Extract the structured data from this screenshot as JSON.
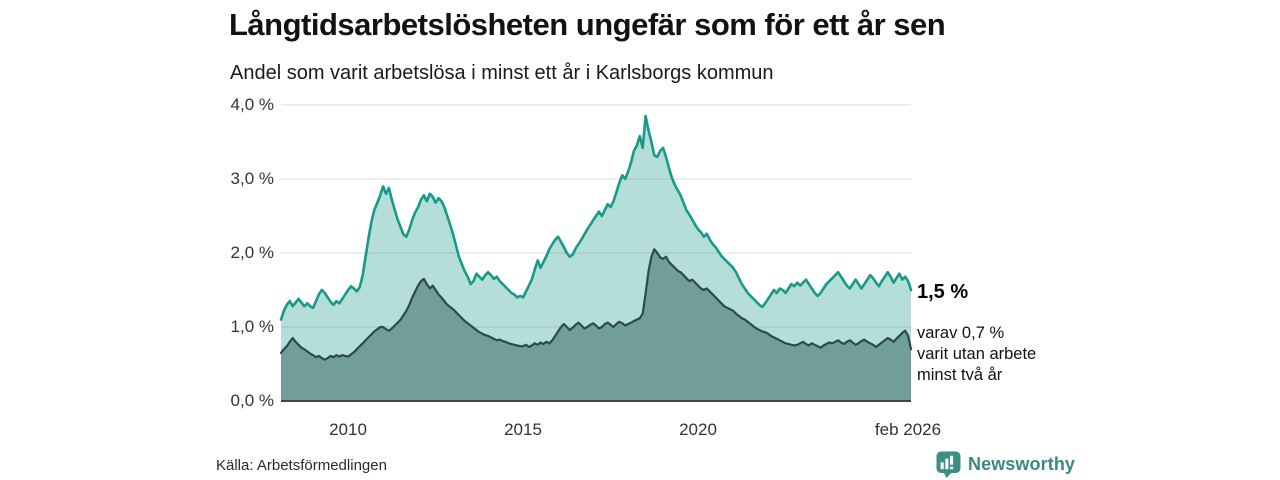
{
  "header": {
    "title": "Långtidsarbetslösheten ungefär som för ett år sen",
    "subtitle": "Andel som varit arbetslösa i minst ett år i Karlsborgs kommun"
  },
  "chart_data": {
    "type": "area",
    "title": "Långtidsarbetslösheten ungefär som för ett år sen",
    "subtitle": "Andel som varit arbetslösa i minst ett år i Karlsborgs kommun",
    "unit": "%",
    "frequency": "monthly",
    "x_start": "feb 2008",
    "x_end": "feb 2026",
    "ylim": [
      0,
      4
    ],
    "grid": "horizontal",
    "legend": "none",
    "styles": {
      "gridline_color": "#dcdcdc",
      "baseline_color": "#444444",
      "background": "#ffffff"
    },
    "yticks": {
      "values": [
        4,
        3,
        2,
        1,
        0
      ],
      "labels": [
        "4,0 %",
        "3,0 %",
        "2,0 %",
        "1,0 %",
        "0,0 %"
      ]
    },
    "xticks": [
      {
        "label": "2010"
      },
      {
        "label": "2015"
      },
      {
        "label": "2020"
      },
      {
        "label": "feb 2026"
      }
    ],
    "series": [
      {
        "name": "Andel arbetslösa minst ett år",
        "color": "#18998a",
        "fill": "#18998a",
        "fill_opacity": 0.32,
        "stroke_width": 2.6,
        "last_value": 1.5,
        "values": [
          1.1,
          1.22,
          1.3,
          1.35,
          1.28,
          1.33,
          1.38,
          1.33,
          1.28,
          1.32,
          1.28,
          1.26,
          1.35,
          1.44,
          1.5,
          1.46,
          1.4,
          1.34,
          1.3,
          1.35,
          1.32,
          1.38,
          1.44,
          1.5,
          1.55,
          1.52,
          1.48,
          1.54,
          1.7,
          1.95,
          2.2,
          2.42,
          2.58,
          2.68,
          2.78,
          2.9,
          2.8,
          2.88,
          2.72,
          2.58,
          2.45,
          2.35,
          2.25,
          2.22,
          2.32,
          2.45,
          2.55,
          2.62,
          2.72,
          2.78,
          2.7,
          2.8,
          2.76,
          2.68,
          2.74,
          2.7,
          2.62,
          2.5,
          2.38,
          2.25,
          2.1,
          1.95,
          1.85,
          1.75,
          1.68,
          1.58,
          1.62,
          1.72,
          1.68,
          1.64,
          1.7,
          1.74,
          1.7,
          1.65,
          1.68,
          1.62,
          1.58,
          1.54,
          1.5,
          1.46,
          1.44,
          1.4,
          1.42,
          1.4,
          1.48,
          1.56,
          1.64,
          1.78,
          1.9,
          1.8,
          1.88,
          1.96,
          2.05,
          2.12,
          2.18,
          2.22,
          2.15,
          2.08,
          2.0,
          1.95,
          1.98,
          2.06,
          2.12,
          2.18,
          2.25,
          2.32,
          2.38,
          2.44,
          2.5,
          2.56,
          2.5,
          2.58,
          2.66,
          2.62,
          2.7,
          2.82,
          2.95,
          3.05,
          3.0,
          3.1,
          3.22,
          3.38,
          3.45,
          3.58,
          3.42,
          3.85,
          3.66,
          3.5,
          3.32,
          3.3,
          3.38,
          3.42,
          3.3,
          3.15,
          3.02,
          2.92,
          2.85,
          2.78,
          2.68,
          2.58,
          2.52,
          2.45,
          2.38,
          2.32,
          2.28,
          2.22,
          2.26,
          2.18,
          2.12,
          2.08,
          2.02,
          1.96,
          1.92,
          1.88,
          1.84,
          1.8,
          1.74,
          1.66,
          1.58,
          1.52,
          1.46,
          1.42,
          1.38,
          1.34,
          1.3,
          1.27,
          1.32,
          1.38,
          1.44,
          1.5,
          1.46,
          1.52,
          1.5,
          1.46,
          1.52,
          1.58,
          1.55,
          1.6,
          1.56,
          1.6,
          1.64,
          1.58,
          1.52,
          1.46,
          1.42,
          1.46,
          1.52,
          1.58,
          1.62,
          1.66,
          1.7,
          1.74,
          1.68,
          1.62,
          1.56,
          1.52,
          1.58,
          1.64,
          1.58,
          1.52,
          1.58,
          1.64,
          1.7,
          1.66,
          1.6,
          1.55,
          1.62,
          1.68,
          1.74,
          1.68,
          1.6,
          1.66,
          1.72,
          1.64,
          1.68,
          1.62,
          1.5
        ]
      },
      {
        "name": "varav arbetslösa minst två år",
        "color": "#2d4b46",
        "fill": "#719e97",
        "fill_opacity": 1,
        "stroke_width": 2.2,
        "last_value": 0.7,
        "values": [
          0.65,
          0.7,
          0.74,
          0.8,
          0.85,
          0.8,
          0.76,
          0.72,
          0.7,
          0.67,
          0.64,
          0.62,
          0.59,
          0.61,
          0.58,
          0.56,
          0.58,
          0.61,
          0.59,
          0.62,
          0.6,
          0.62,
          0.61,
          0.6,
          0.63,
          0.66,
          0.7,
          0.74,
          0.78,
          0.82,
          0.86,
          0.9,
          0.94,
          0.97,
          1.0,
          1.0,
          0.97,
          0.95,
          0.98,
          1.02,
          1.06,
          1.1,
          1.16,
          1.22,
          1.3,
          1.4,
          1.48,
          1.56,
          1.62,
          1.65,
          1.58,
          1.52,
          1.56,
          1.5,
          1.44,
          1.4,
          1.35,
          1.3,
          1.27,
          1.24,
          1.2,
          1.16,
          1.12,
          1.08,
          1.05,
          1.02,
          0.99,
          0.96,
          0.93,
          0.91,
          0.89,
          0.88,
          0.86,
          0.84,
          0.82,
          0.83,
          0.81,
          0.8,
          0.78,
          0.77,
          0.76,
          0.75,
          0.74,
          0.74,
          0.76,
          0.73,
          0.75,
          0.78,
          0.76,
          0.79,
          0.77,
          0.8,
          0.78,
          0.82,
          0.88,
          0.94,
          1.0,
          1.04,
          1.0,
          0.96,
          0.99,
          1.03,
          1.06,
          1.02,
          0.98,
          1.0,
          1.03,
          1.05,
          1.02,
          0.98,
          1.0,
          1.04,
          1.06,
          1.03,
          1.0,
          1.04,
          1.07,
          1.05,
          1.02,
          1.04,
          1.06,
          1.08,
          1.1,
          1.12,
          1.18,
          1.45,
          1.75,
          1.95,
          2.05,
          2.0,
          1.94,
          1.92,
          1.95,
          1.88,
          1.84,
          1.8,
          1.76,
          1.74,
          1.7,
          1.66,
          1.62,
          1.64,
          1.6,
          1.56,
          1.52,
          1.5,
          1.52,
          1.48,
          1.44,
          1.4,
          1.36,
          1.32,
          1.28,
          1.26,
          1.24,
          1.22,
          1.18,
          1.15,
          1.12,
          1.1,
          1.07,
          1.04,
          1.01,
          0.98,
          0.96,
          0.94,
          0.93,
          0.91,
          0.88,
          0.86,
          0.84,
          0.82,
          0.8,
          0.78,
          0.77,
          0.76,
          0.75,
          0.76,
          0.78,
          0.8,
          0.77,
          0.75,
          0.78,
          0.76,
          0.74,
          0.72,
          0.75,
          0.77,
          0.79,
          0.78,
          0.8,
          0.82,
          0.79,
          0.77,
          0.8,
          0.82,
          0.79,
          0.76,
          0.78,
          0.81,
          0.83,
          0.8,
          0.78,
          0.76,
          0.73,
          0.76,
          0.79,
          0.82,
          0.85,
          0.83,
          0.8,
          0.84,
          0.88,
          0.92,
          0.95,
          0.88,
          0.7
        ]
      }
    ]
  },
  "annotation": {
    "value_label": "1,5 %",
    "sub_lines": [
      "varav 0,7 %",
      "varit utan arbete",
      "minst två år"
    ]
  },
  "footer": {
    "source": "Källa: Arbetsförmedlingen",
    "brand": "Newsworthy",
    "brand_color": "#3d8f83"
  }
}
